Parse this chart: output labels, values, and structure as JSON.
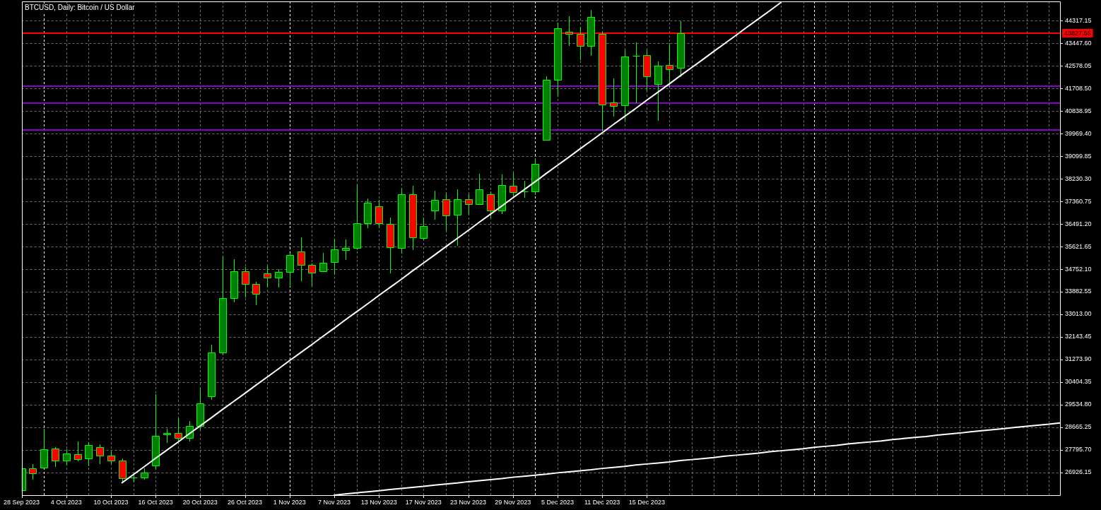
{
  "chart_data": {
    "type": "candlestick",
    "title": "BTCUSD, Daily: Bitcoin / US Dollar",
    "categories": [
      "28 Sep 2023",
      null,
      null,
      null,
      "4 Oct 2023",
      null,
      null,
      null,
      "10 Oct 2023",
      null,
      null,
      null,
      "16 Oct 2023",
      null,
      null,
      null,
      "20 Oct 2023",
      null,
      null,
      null,
      "26 Oct 2023",
      null,
      null,
      null,
      "1 Nov 2023",
      null,
      null,
      null,
      "7 Nov 2023",
      null,
      null,
      null,
      "13 Nov 2023",
      null,
      null,
      null,
      "17 Nov 2023",
      null,
      null,
      null,
      "23 Nov 2023",
      null,
      null,
      null,
      "29 Nov 2023",
      null,
      null,
      null,
      "5 Dec 2023",
      null,
      null,
      null,
      "11 Dec 2023",
      null,
      null,
      null,
      "15 Dec 2023",
      null,
      null,
      null,
      null,
      null,
      null,
      null,
      null,
      null,
      null,
      null,
      null,
      null,
      null,
      null,
      null,
      null,
      null,
      null,
      null,
      null,
      null,
      null,
      null,
      null,
      null,
      null,
      null,
      null,
      null,
      null,
      null,
      null,
      null,
      null,
      null,
      null
    ],
    "ylim": [
      26050,
      45060
    ],
    "yticks": [
      44317.15,
      {
        "value": 43447.6,
        "label": "43447.60"
      },
      42578.05,
      {
        "value": 41708.5,
        "label": "41708.50"
      },
      40838.95,
      {
        "value": 39969.4,
        "label": "39969.40"
      },
      39099.85,
      {
        "value": 38230.3,
        "label": "38230.30"
      },
      37360.75,
      {
        "value": 36491.2,
        "label": "36491.20"
      },
      35621.65,
      {
        "value": 34752.1,
        "label": "34752.10"
      },
      33882.55,
      {
        "value": 33013,
        "label": "33013.00"
      },
      32143.45,
      {
        "value": 31273.9,
        "label": "31273.90"
      },
      30404.35,
      {
        "value": 29534.8,
        "label": "29534.80"
      },
      28665.25,
      {
        "value": 27795.7,
        "label": "27795.70"
      },
      26926.15
    ],
    "grid": true,
    "ref_lines": [
      {
        "axis": "y",
        "value": 43827.65,
        "label": "43827.65",
        "color": "#ff0000"
      },
      {
        "axis": "y",
        "value": 41800,
        "color": "#8a00c8"
      },
      {
        "axis": "y",
        "value": 41150,
        "color": "#8a00c8"
      },
      {
        "axis": "y",
        "value": 40100,
        "color": "#8a00c8"
      }
    ],
    "series": [
      {
        "type": "line",
        "color": "#ffffff",
        "values": [
          null,
          null,
          null,
          null,
          null,
          null,
          null,
          null,
          null,
          26530,
          26840,
          27150,
          27470,
          27780,
          28090,
          28410,
          28720,
          29030,
          29350,
          29660,
          29970,
          30290,
          30600,
          30910,
          31230,
          31540,
          31850,
          32170,
          32480,
          32800,
          33110,
          33420,
          33740,
          34050,
          34360,
          34680,
          34990,
          35300,
          35620,
          35930,
          36240,
          36560,
          36870,
          37180,
          37500,
          37810,
          38120,
          38440,
          38750,
          39060,
          39380,
          39690,
          40000,
          40320,
          40630,
          40940,
          41260,
          41570,
          41880,
          42200,
          42510,
          42820,
          43140,
          43450,
          43760,
          44080,
          44390,
          44700,
          45020,
          null,
          null,
          null,
          null,
          null,
          null,
          null,
          null,
          null,
          null,
          null,
          null,
          null,
          null,
          null,
          null,
          null,
          null,
          null,
          null,
          null,
          null,
          null,
          null,
          null
        ]
      },
      {
        "type": "line",
        "color": "#ffffff",
        "values": [
          null,
          null,
          null,
          null,
          null,
          null,
          null,
          null,
          null,
          null,
          null,
          null,
          null,
          null,
          null,
          null,
          null,
          null,
          null,
          null,
          null,
          null,
          null,
          null,
          null,
          null,
          null,
          null,
          26050,
          26100,
          26140,
          26180,
          26220,
          26270,
          26310,
          26350,
          26390,
          26440,
          26480,
          26520,
          26570,
          26610,
          26650,
          26690,
          26740,
          26780,
          26820,
          26860,
          26910,
          26950,
          26990,
          27030,
          27080,
          27120,
          27160,
          27210,
          27250,
          27290,
          27330,
          27380,
          27420,
          27460,
          27500,
          27550,
          27590,
          27630,
          27670,
          27720,
          27760,
          27800,
          27840,
          27890,
          27930,
          27970,
          28020,
          28060,
          28100,
          28140,
          28190,
          28230,
          28270,
          28310,
          28360,
          28400,
          28440,
          28490,
          28530,
          28570,
          28610,
          28660,
          28700,
          28740,
          28780,
          28830
        ]
      },
      {
        "color": "#00ff00",
        "ohlc": [
          [
            26228,
            27089,
            26228,
            27089
          ],
          [
            27089,
            27234,
            26655,
            26899
          ],
          [
            27117,
            28593,
            27117,
            27824
          ],
          [
            27851,
            27886,
            27133,
            27389
          ],
          [
            27389,
            27824,
            27188,
            27661
          ],
          [
            27634,
            28123,
            27343,
            27443
          ],
          [
            27470,
            28085,
            27161,
            27987
          ],
          [
            27905,
            27995,
            27242,
            27579
          ],
          [
            27579,
            27742,
            27242,
            27389
          ],
          [
            27389,
            27470,
            26527,
            26709
          ],
          [
            26717,
            26927,
            26546,
            26717
          ],
          [
            26737,
            27071,
            26655,
            26927
          ],
          [
            27199,
            29944,
            27036,
            28340
          ],
          [
            28395,
            28620,
            28068,
            28449
          ],
          [
            28449,
            29009,
            28131,
            28259
          ],
          [
            28259,
            28919,
            28112,
            28721
          ],
          [
            28721,
            30197,
            28558,
            29591
          ],
          [
            29862,
            31855,
            29716,
            31547
          ],
          [
            31547,
            35244,
            31428,
            33640
          ],
          [
            33640,
            35143,
            33466,
            34673
          ],
          [
            34673,
            34844,
            33676,
            34184
          ],
          [
            34184,
            34274,
            33377,
            33803
          ],
          [
            34592,
            34872,
            34037,
            34429
          ],
          [
            34429,
            34744,
            34037,
            34646
          ],
          [
            34646,
            35380,
            34064,
            35298
          ],
          [
            35434,
            35978,
            34282,
            34918
          ],
          [
            34918,
            34980,
            34092,
            34619
          ],
          [
            34673,
            35380,
            34673,
            34999
          ],
          [
            35027,
            35913,
            34526,
            35516
          ],
          [
            35489,
            35896,
            35097,
            35570
          ],
          [
            35570,
            37997,
            35478,
            36521
          ],
          [
            36521,
            37473,
            36320,
            37310
          ],
          [
            37174,
            37418,
            36320,
            36521
          ],
          [
            36494,
            36739,
            34592,
            35597
          ],
          [
            35570,
            37870,
            35342,
            37636
          ],
          [
            37636,
            37962,
            35478,
            35978
          ],
          [
            35951,
            36739,
            35869,
            36413
          ],
          [
            37011,
            37772,
            36657,
            37418
          ],
          [
            37446,
            37679,
            36222,
            36820
          ],
          [
            36837,
            37826,
            35641,
            37446
          ],
          [
            37446,
            37636,
            36848,
            37255
          ],
          [
            37244,
            38432,
            37217,
            37826
          ],
          [
            37636,
            37745,
            36712,
            37011
          ],
          [
            37011,
            38397,
            36875,
            37989
          ],
          [
            37962,
            38451,
            37554,
            37717
          ],
          [
            37745,
            38160,
            37489,
            37745
          ],
          [
            37734,
            39011,
            37598,
            38805
          ],
          [
            39718,
            42183,
            39691,
            42039
          ],
          [
            42039,
            44241,
            41376,
            44023
          ],
          [
            43887,
            44493,
            43360,
            43806
          ],
          [
            43806,
            44077,
            42808,
            43360
          ],
          [
            43360,
            44738,
            42971,
            44458
          ],
          [
            43806,
            43914,
            40063,
            41077
          ],
          [
            41169,
            42101,
            40615,
            41022
          ],
          [
            41050,
            43197,
            40452,
            42936
          ],
          [
            42971,
            43480,
            41131,
            42971
          ],
          [
            42990,
            43189,
            41639,
            42175
          ],
          [
            41876,
            42746,
            40471,
            42583
          ],
          [
            42610,
            43452,
            41767,
            42447
          ],
          [
            42501,
            44303,
            42156,
            43833
          ],
          null,
          null,
          null,
          null,
          null,
          null,
          null,
          null,
          null,
          null,
          null,
          null,
          null,
          null,
          null,
          null,
          null,
          null,
          null,
          null,
          null,
          null,
          null,
          null,
          null,
          null,
          null,
          null,
          null,
          null,
          null,
          null,
          null,
          null
        ],
        "colors": [
          "#008000",
          "#ff0000",
          "#008000",
          "#ff0000",
          "#008000",
          "#ff0000",
          "#008000",
          "#ff0000",
          "#ff0000",
          "#ff0000",
          "#00ff00",
          "#008000",
          "#008000",
          "#008000",
          "#ff0000",
          "#008000",
          "#008000",
          "#008000",
          "#008000",
          "#008000",
          "#ff0000",
          "#ff0000",
          "#ff0000",
          "#008000",
          "#008000",
          "#ff0000",
          "#ff0000",
          "#008000",
          "#008000",
          "#008000",
          "#008000",
          "#008000",
          "#ff0000",
          "#ff0000",
          "#008000",
          "#ff0000",
          "#008000",
          "#008000",
          "#ff0000",
          "#008000",
          "#ff0000",
          "#008000",
          "#ff0000",
          "#008000",
          "#ff0000",
          "#00ff00",
          "#008000",
          "#008000",
          "#008000",
          "#ff0000",
          "#ff0000",
          "#008000",
          "#ff0000",
          "#ff0000",
          "#008000",
          "#00ff00",
          "#ff0000",
          "#008000",
          "#ff0000",
          "#008000",
          null,
          null,
          null,
          null,
          null,
          null,
          null,
          null,
          null,
          null,
          null,
          null,
          null,
          null,
          null,
          null,
          null,
          null,
          null,
          null,
          null,
          null,
          null,
          null,
          null,
          null,
          null,
          null,
          null,
          null,
          null,
          null,
          null,
          null
        ]
      }
    ]
  }
}
